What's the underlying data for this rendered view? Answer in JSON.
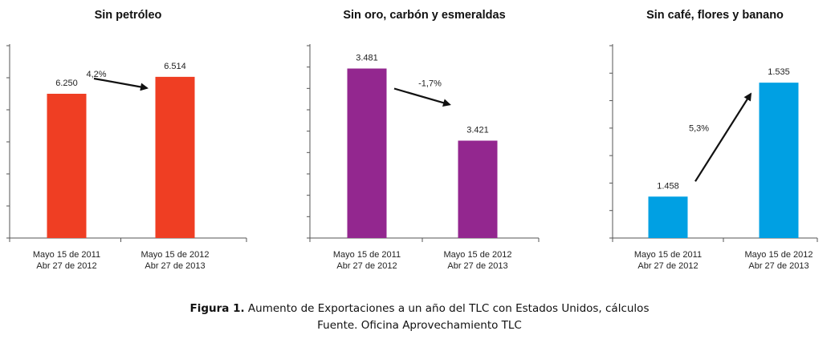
{
  "chart_data": [
    {
      "type": "bar",
      "title": "Sin petróleo",
      "categories": [
        "Mayo 15 de 2011\nAbr 27 de 2012",
        "Mayo 15 de 2012\nAbr 27 de 2013"
      ],
      "values": [
        6250,
        6514
      ],
      "value_labels": [
        "6.250",
        "6.514"
      ],
      "change_label": "4,2%",
      "change_direction": "up",
      "ylim": [
        4000,
        7000
      ],
      "color": "#ef3e23"
    },
    {
      "type": "bar",
      "title": "Sin oro, carbón y esmeraldas",
      "categories": [
        "Mayo 15 de 2011\nAbr 27 de 2012",
        "Mayo 15 de 2012\nAbr 27 de 2013"
      ],
      "values": [
        3481,
        3421
      ],
      "value_labels": [
        "3.481",
        "3.421"
      ],
      "change_label": "-1,7%",
      "change_direction": "down",
      "ylim": [
        3340,
        3500
      ],
      "color": "#93278f"
    },
    {
      "type": "bar",
      "title": "Sin café, flores y banano",
      "categories": [
        "Mayo 15 de 2011\nAbr 27 de 2012",
        "Mayo 15 de 2012\nAbr 27 de 2013"
      ],
      "values": [
        1458,
        1535
      ],
      "value_labels": [
        "1.458",
        "1.535"
      ],
      "change_label": "5,3%",
      "change_direction": "up",
      "ylim": [
        1430,
        1560
      ],
      "color": "#00a0e3"
    }
  ],
  "caption": {
    "figure_label": "Figura 1.",
    "figure_text": " Aumento de Exportaciones a un año del TLC con Estados Unidos, cálculos",
    "source": "Fuente. Oficina Aprovechamiento TLC"
  }
}
